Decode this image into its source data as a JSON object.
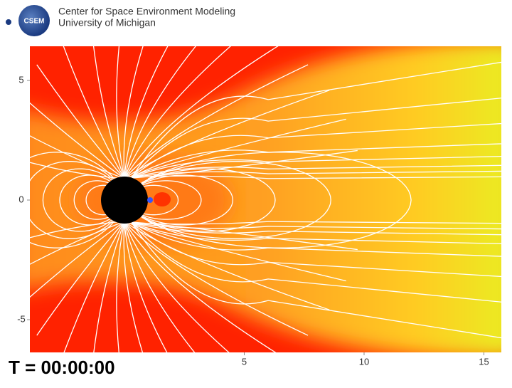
{
  "header": {
    "logo": "CSEM",
    "line1": "Center for Space Environment Modeling",
    "line2": "University of Michigan"
  },
  "plot": {
    "yticks": [
      5,
      0,
      -5
    ],
    "xticks": [
      5,
      10,
      15
    ]
  },
  "time_label": "T = 00:00:00"
}
